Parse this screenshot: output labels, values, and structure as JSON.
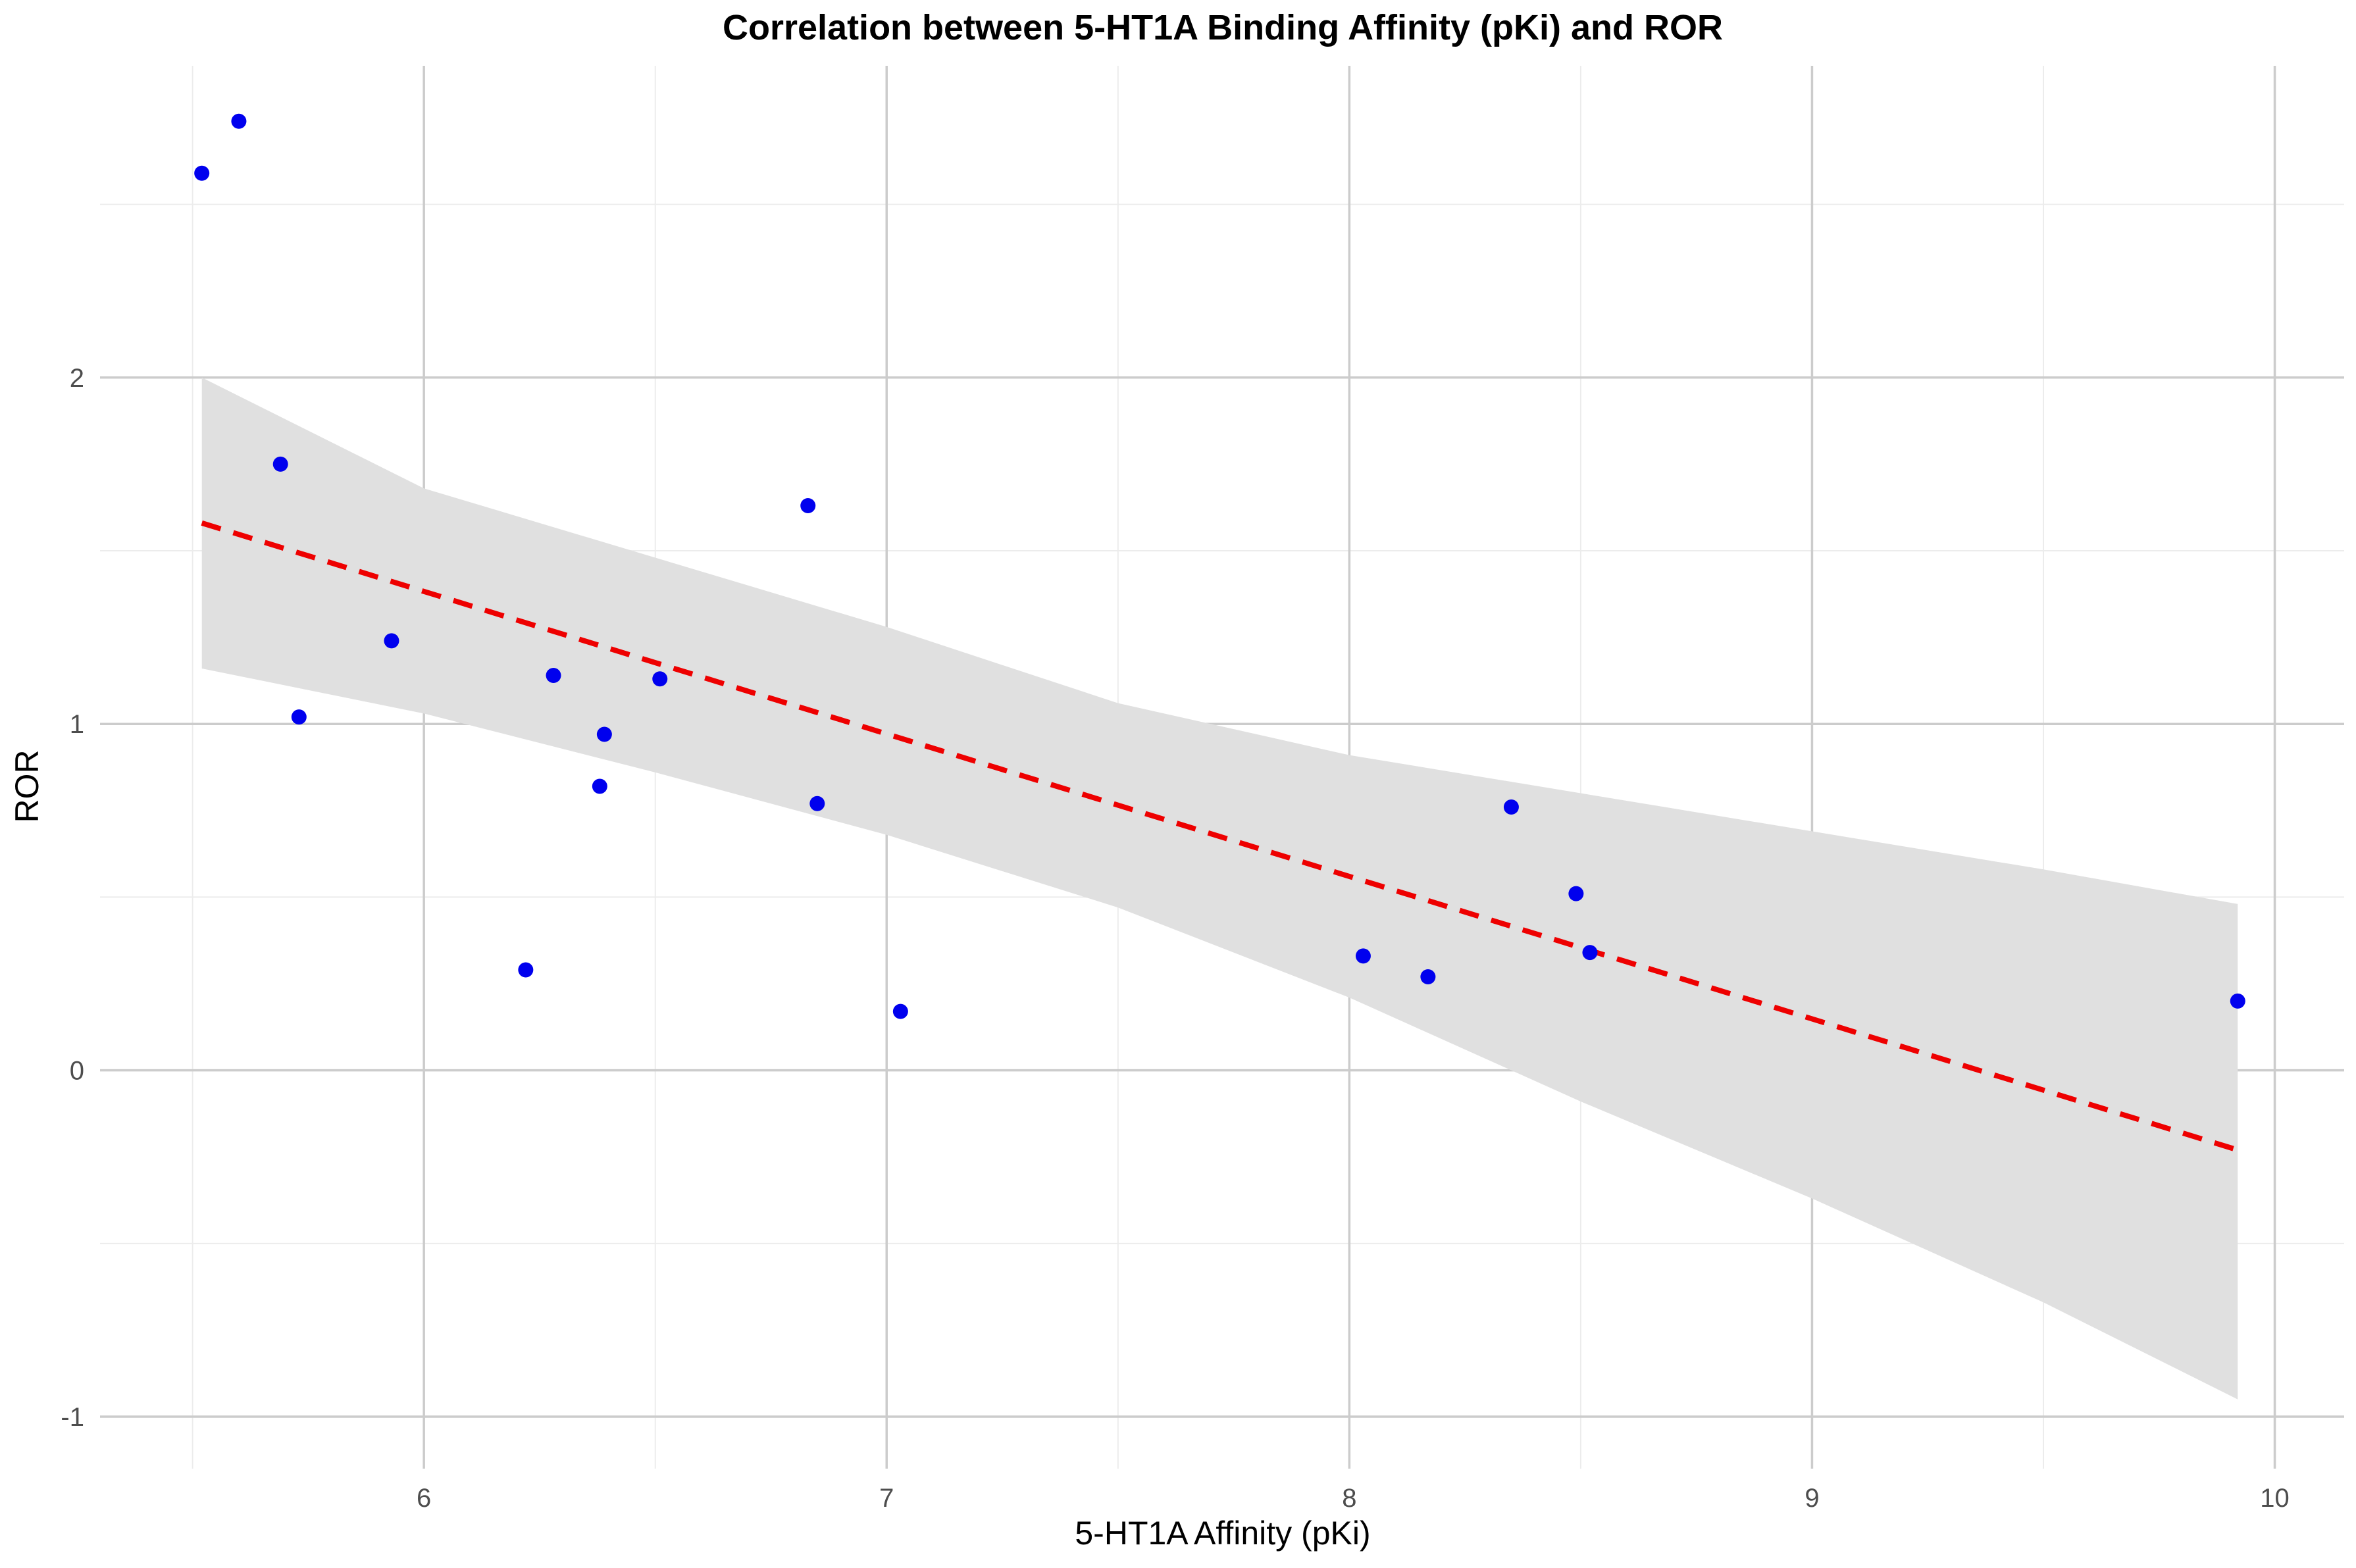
{
  "chart_data": {
    "type": "scatter",
    "title": "Correlation between 5-HT1A Binding Affinity (pKi) and ROR",
    "xlabel": "5-HT1A Affinity (pKi)",
    "ylabel": "ROR",
    "xlim": [
      5.3,
      10.15
    ],
    "ylim": [
      -1.15,
      2.9
    ],
    "x_ticks": [
      6,
      7,
      8,
      9,
      10
    ],
    "x_tick_labels": [
      "6",
      "7",
      "8",
      "9",
      "10"
    ],
    "x_minor_ticks": [
      5.5,
      6.5,
      7.5,
      8.5,
      9.5
    ],
    "y_ticks": [
      -1,
      0,
      1,
      2
    ],
    "y_tick_labels": [
      "-1",
      "0",
      "1",
      "2"
    ],
    "y_minor_ticks": [
      -0.5,
      0.5,
      1.5,
      2.5
    ],
    "grid": true,
    "legend": "none",
    "colors": {
      "points": "#0000ee",
      "trend_line": "#ee0000",
      "confidence_band": "#e0e0e0",
      "grid_major": "#cccccc",
      "grid_minor": "#ececec"
    },
    "series": [
      {
        "name": "points",
        "points": [
          {
            "x": 5.52,
            "y": 2.59
          },
          {
            "x": 5.6,
            "y": 2.74
          },
          {
            "x": 5.69,
            "y": 1.75
          },
          {
            "x": 5.73,
            "y": 1.02
          },
          {
            "x": 5.93,
            "y": 1.24
          },
          {
            "x": 6.22,
            "y": 0.29
          },
          {
            "x": 6.28,
            "y": 1.14
          },
          {
            "x": 6.38,
            "y": 0.82
          },
          {
            "x": 6.39,
            "y": 0.97
          },
          {
            "x": 6.51,
            "y": 1.13
          },
          {
            "x": 6.83,
            "y": 1.63
          },
          {
            "x": 6.85,
            "y": 0.77
          },
          {
            "x": 7.03,
            "y": 0.17
          },
          {
            "x": 8.03,
            "y": 0.33
          },
          {
            "x": 8.17,
            "y": 0.27
          },
          {
            "x": 8.35,
            "y": 0.76
          },
          {
            "x": 8.49,
            "y": 0.51
          },
          {
            "x": 8.52,
            "y": 0.34
          },
          {
            "x": 9.92,
            "y": 0.2
          }
        ]
      }
    ],
    "trend_line": {
      "style": "dashed",
      "x": [
        5.52,
        9.92
      ],
      "y": [
        1.58,
        -0.23
      ]
    },
    "confidence_band": {
      "x": [
        5.52,
        6.0,
        6.5,
        7.0,
        7.5,
        8.0,
        8.5,
        9.0,
        9.5,
        9.92
      ],
      "upper": [
        2.0,
        1.68,
        1.48,
        1.28,
        1.06,
        0.91,
        0.8,
        0.69,
        0.58,
        0.48
      ],
      "lower": [
        1.16,
        1.03,
        0.86,
        0.68,
        0.47,
        0.21,
        -0.09,
        -0.37,
        -0.67,
        -0.95
      ]
    }
  }
}
